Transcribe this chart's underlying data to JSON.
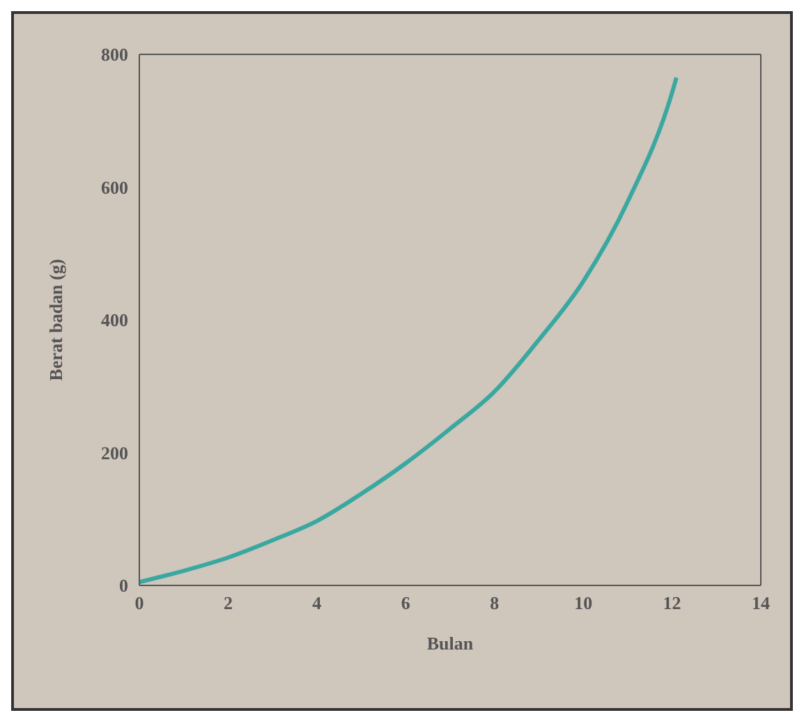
{
  "chart_data": {
    "type": "line",
    "xlabel": "Bulan",
    "ylabel": "Berat badan (g)",
    "x": [
      0,
      1,
      2,
      3,
      4,
      5,
      6,
      7,
      8,
      9,
      10,
      11,
      12,
      12.1
    ],
    "series": [
      {
        "color": "#3aa8a0",
        "values": [
          5,
          22,
          42,
          68,
          97,
          138,
          184,
          236,
          292,
          370,
          458,
          578,
          742,
          765
        ]
      }
    ],
    "xlim": [
      0,
      14
    ],
    "xticks": [
      0,
      2,
      4,
      6,
      8,
      10,
      12,
      14
    ],
    "ylim": [
      0,
      800
    ],
    "yticks": [
      0,
      200,
      400,
      600,
      800
    ],
    "grid": false,
    "marker": "none",
    "line_style": "solid"
  }
}
